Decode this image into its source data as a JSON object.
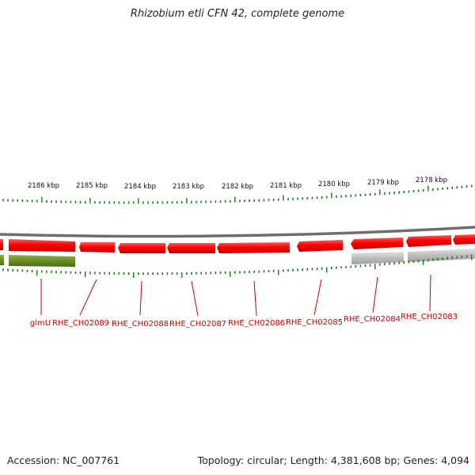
{
  "title": "Rhizobium etli CFN 42, complete genome",
  "accession": "Accession: NC_007761",
  "genome_info": "Topology: circular; Length: 4,381,608 bp; Genes: 4,094",
  "colors": {
    "tick": "#1a7a1a",
    "forward_gene": "#ff0000",
    "rrna_gene": "#6b8e23",
    "other_gene": "#bdbdbd",
    "backbone": "#8a8a8a",
    "label": "#cc0000"
  },
  "kbp_labels": [
    "2186 kbp",
    "2185 kbp",
    "2184 kbp",
    "2183 kbp",
    "2182 kbp",
    "2181 kbp",
    "2180 kbp",
    "2179 kbp",
    "2178 kbp"
  ],
  "gene_labels": [
    "glmU",
    "RHE_CH02089",
    "RHE_CH02088",
    "RHE_CH02087",
    "RHE_CH02086",
    "RHE_CH02085",
    "RHE_CH02084",
    "RHE_CH02083"
  ]
}
